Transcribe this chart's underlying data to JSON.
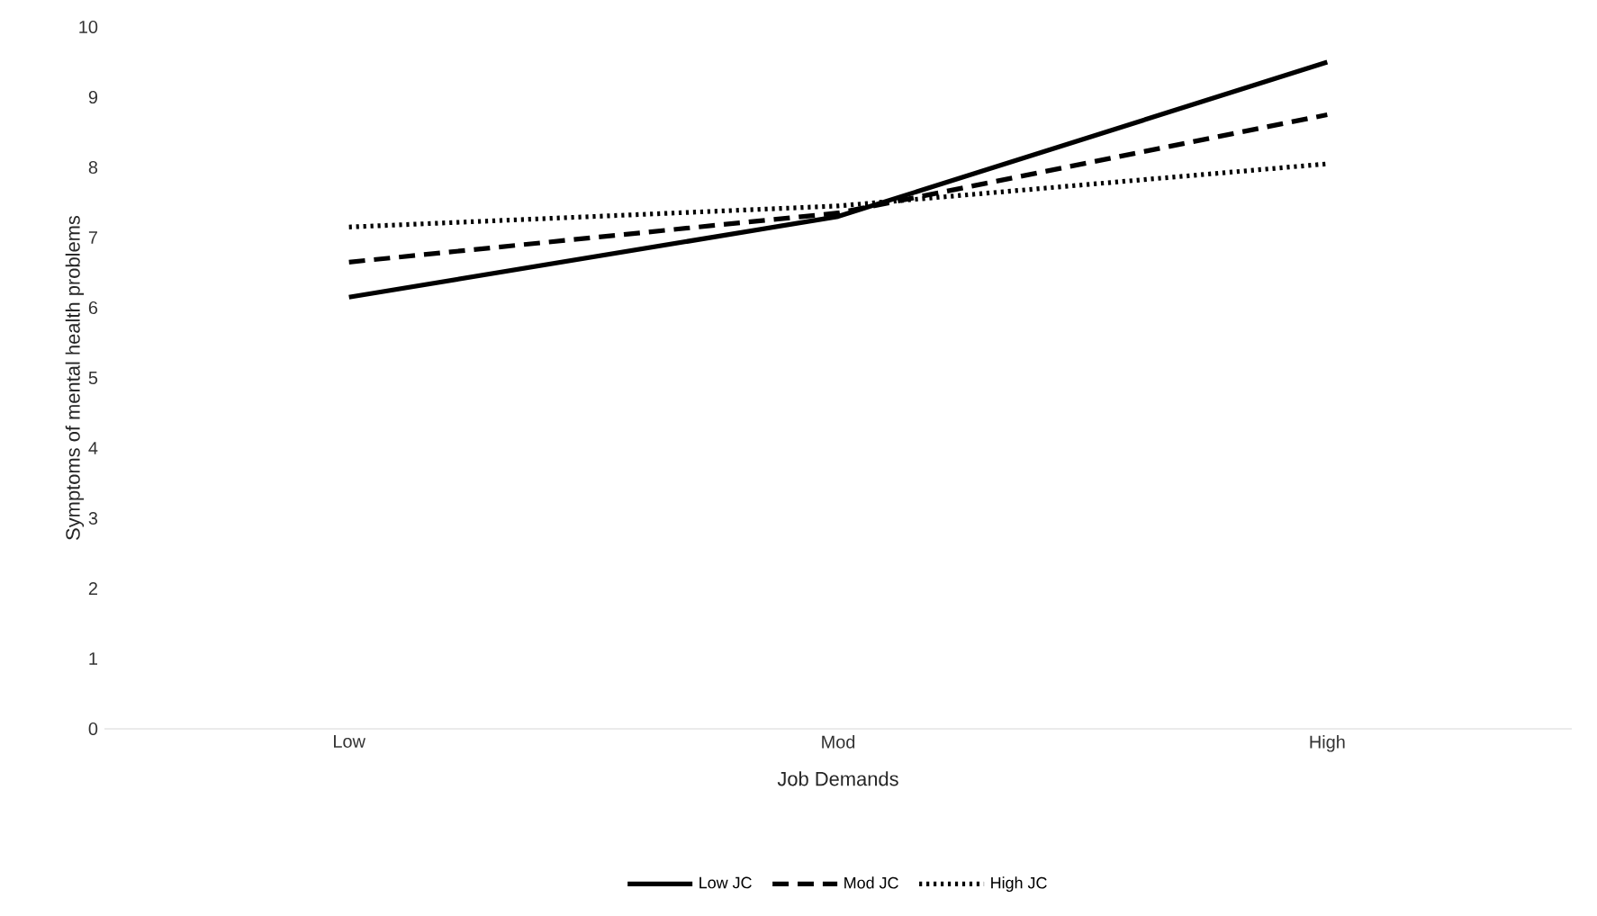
{
  "chart_data": {
    "type": "line",
    "xlabel": "Job Demands",
    "ylabel": "Symptoms of mental health problems",
    "categories": [
      "Low",
      "Mod",
      "High"
    ],
    "series": [
      {
        "name": "Low JC",
        "color": "#000000",
        "line_style": "solid",
        "values": [
          6.15,
          7.3,
          9.5
        ]
      },
      {
        "name": "Mod JC",
        "color": "#000000",
        "line_style": "dashed",
        "values": [
          6.65,
          7.35,
          8.75
        ]
      },
      {
        "name": "High JC",
        "color": "#000000",
        "line_style": "dotted",
        "values": [
          7.15,
          7.45,
          8.05
        ]
      }
    ],
    "ylim": [
      0,
      10
    ],
    "yticks": [
      0,
      1,
      2,
      3,
      4,
      5,
      6,
      7,
      8,
      9,
      10
    ],
    "grid": false,
    "legend": "bottom"
  }
}
